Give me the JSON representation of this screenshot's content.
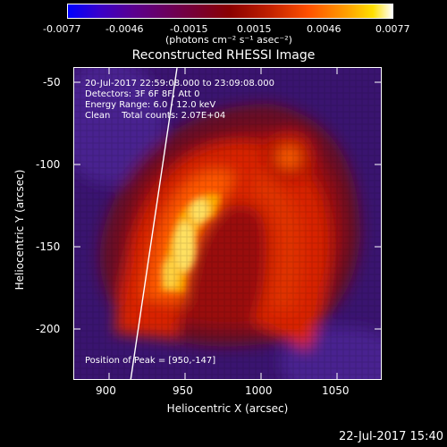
{
  "colorbar": {
    "ticks": [
      "-0.0077",
      "-0.0046",
      "-0.0015",
      "0.0015",
      "0.0046",
      "0.0077"
    ],
    "unit_label": "(photons cm⁻² s⁻¹ asec⁻²)"
  },
  "image": {
    "title": "Reconstructed RHESSI Image",
    "time_range": "20-Jul-2017 22:59:08.000 to 23:09:08.000",
    "detectors": "Detectors: 3F 6F 8F, Att 0",
    "energy_range": "Energy Range: 6.0 - 12.0 keV",
    "method": "Clean    Total counts: 2.07E+04",
    "peak": "Position of Peak = [950,-147]",
    "x_label": "Heliocentric X (arcsec)",
    "y_label": "Heliocentric Y (arcsec)",
    "x_ticks": [
      "900",
      "950",
      "1000",
      "1050"
    ],
    "y_ticks": [
      "-50",
      "-100",
      "-150",
      "-200"
    ],
    "timestamp": "22-Jul-2017 15:40"
  }
}
